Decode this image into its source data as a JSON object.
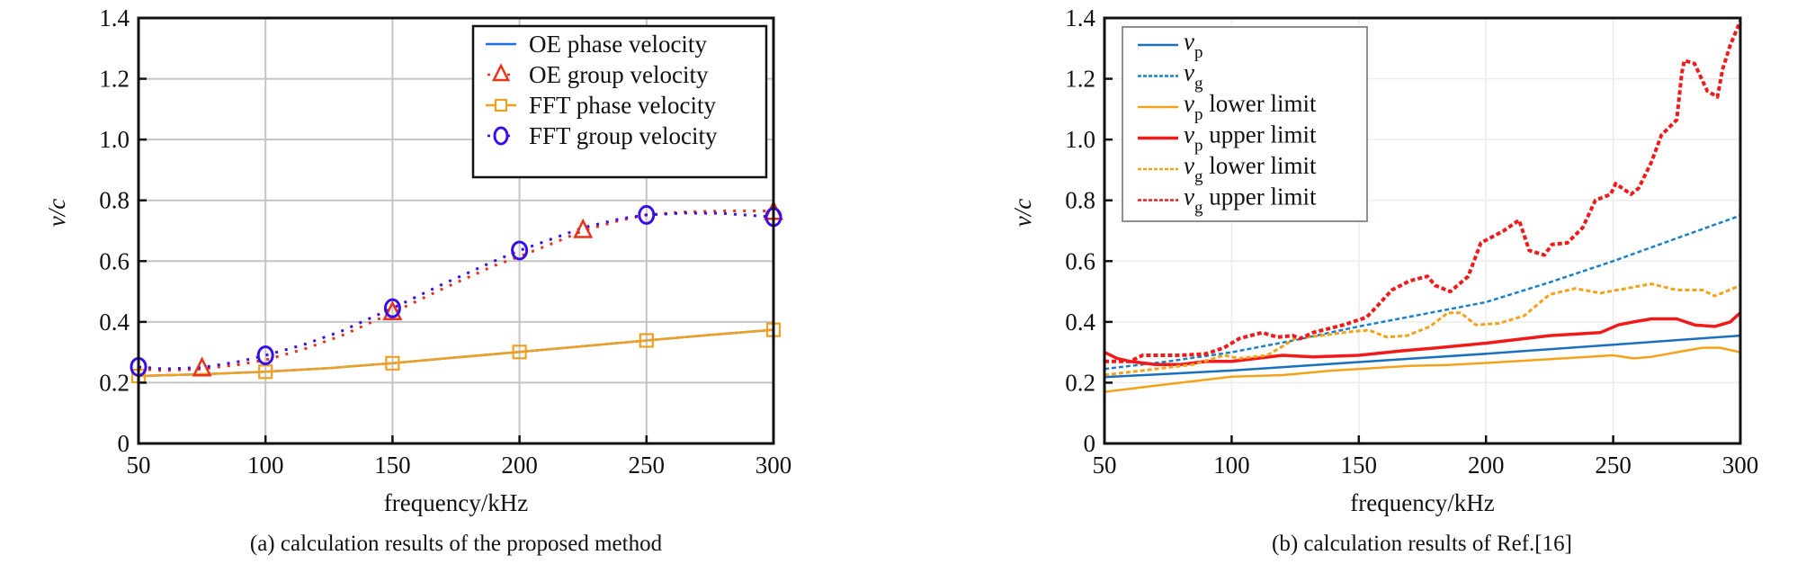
{
  "chart_data": [
    {
      "id": "a",
      "type": "line",
      "caption": "(a) calculation results of the proposed method",
      "xlabel": "frequency/kHz",
      "ylabel_italic": "v/c",
      "xlim": [
        50,
        300
      ],
      "ylim": [
        0,
        1.4
      ],
      "xticks": [
        "50",
        "100",
        "150",
        "200",
        "250",
        "300"
      ],
      "xtick_values": [
        50,
        100,
        150,
        200,
        250,
        300
      ],
      "yticks": [
        "0",
        "0.2",
        "0.4",
        "0.6",
        "0.8",
        "1.0",
        "1.2",
        "1.4"
      ],
      "ytick_values": [
        0,
        0.2,
        0.4,
        0.6,
        0.8,
        1.0,
        1.2,
        1.4
      ],
      "grid": true,
      "legend_position": "top-right",
      "series": [
        {
          "name": "OE phase velocity",
          "color": "#1f6fe0",
          "style": "solid",
          "marker": "none",
          "x": [
            50,
            75,
            100,
            125,
            150,
            175,
            200,
            225,
            250,
            275,
            300
          ],
          "y": [
            0.222,
            0.228,
            0.236,
            0.248,
            0.264,
            0.283,
            0.301,
            0.32,
            0.339,
            0.357,
            0.374
          ]
        },
        {
          "name": "OE group velocity",
          "color": "#e8321a",
          "style": "dotted",
          "marker": "triangle",
          "x": [
            50,
            60,
            75,
            90,
            100,
            115,
            130,
            150,
            170,
            190,
            200,
            215,
            225,
            240,
            250,
            265,
            280,
            300
          ],
          "y": [
            0.245,
            0.24,
            0.245,
            0.26,
            0.275,
            0.31,
            0.355,
            0.43,
            0.51,
            0.585,
            0.615,
            0.665,
            0.7,
            0.735,
            0.752,
            0.762,
            0.765,
            0.765
          ],
          "marker_x": [
            75,
            150,
            225,
            300
          ],
          "marker_y": [
            0.245,
            0.43,
            0.7,
            0.76
          ]
        },
        {
          "name": "FFT phase velocity",
          "color": "#f0a020",
          "style": "solid",
          "marker": "square",
          "x": [
            50,
            75,
            100,
            125,
            150,
            175,
            200,
            225,
            250,
            275,
            300
          ],
          "y": [
            0.222,
            0.228,
            0.236,
            0.248,
            0.264,
            0.283,
            0.301,
            0.32,
            0.339,
            0.357,
            0.374
          ],
          "marker_x": [
            50,
            100,
            150,
            200,
            250,
            300
          ],
          "marker_y": [
            0.222,
            0.236,
            0.264,
            0.301,
            0.339,
            0.374
          ]
        },
        {
          "name": "FFT group velocity",
          "color": "#3a0ee8",
          "style": "dotted",
          "marker": "circle",
          "x": [
            50,
            60,
            75,
            90,
            100,
            115,
            130,
            150,
            170,
            190,
            200,
            215,
            225,
            240,
            250,
            265,
            280,
            300
          ],
          "y": [
            0.252,
            0.245,
            0.25,
            0.27,
            0.29,
            0.325,
            0.37,
            0.445,
            0.525,
            0.6,
            0.635,
            0.68,
            0.71,
            0.74,
            0.752,
            0.758,
            0.757,
            0.745
          ],
          "marker_x": [
            50,
            100,
            150,
            200,
            250,
            300
          ],
          "marker_y": [
            0.252,
            0.29,
            0.445,
            0.635,
            0.752,
            0.745
          ]
        }
      ]
    },
    {
      "id": "b",
      "type": "line",
      "caption": "(b) calculation results of Ref.[16]",
      "xlabel": "frequency/kHz",
      "ylabel_italic": "v/c",
      "xlim": [
        50,
        300
      ],
      "ylim": [
        0,
        1.4
      ],
      "xticks": [
        "50",
        "100",
        "150",
        "200",
        "250",
        "300"
      ],
      "xtick_values": [
        50,
        100,
        150,
        200,
        250,
        300
      ],
      "yticks": [
        "0",
        "0.2",
        "0.4",
        "0.6",
        "0.8",
        "1.0",
        "1.2",
        "1.4"
      ],
      "ytick_values": [
        0,
        0.2,
        0.4,
        0.6,
        0.8,
        1.0,
        1.2,
        1.4
      ],
      "grid": true,
      "legend_position": "top-left",
      "series": [
        {
          "name_main": "v",
          "name_sub": "p",
          "name_suffix": "",
          "color": "#1a70c0",
          "style": "solid",
          "width": 2.5,
          "x": [
            50,
            100,
            150,
            200,
            250,
            300
          ],
          "y": [
            0.218,
            0.24,
            0.268,
            0.295,
            0.325,
            0.355
          ]
        },
        {
          "name_main": "v",
          "name_sub": "g",
          "name_suffix": "",
          "color": "#1a80c8",
          "style": "dashed",
          "width": 2.5,
          "x": [
            50,
            75,
            100,
            125,
            150,
            175,
            200,
            225,
            250,
            275,
            300
          ],
          "y": [
            0.245,
            0.27,
            0.3,
            0.34,
            0.385,
            0.425,
            0.465,
            0.53,
            0.6,
            0.675,
            0.75
          ]
        },
        {
          "name_main": "v",
          "name_sub": "p",
          "name_suffix": " lower limit",
          "color": "#f5a21b",
          "style": "solid",
          "width": 2.5,
          "x": [
            50,
            60,
            70,
            85,
            100,
            120,
            140,
            150,
            170,
            185,
            200,
            220,
            240,
            250,
            258,
            265,
            275,
            285,
            292,
            300
          ],
          "y": [
            0.17,
            0.18,
            0.19,
            0.205,
            0.22,
            0.225,
            0.24,
            0.245,
            0.255,
            0.258,
            0.265,
            0.275,
            0.285,
            0.29,
            0.28,
            0.285,
            0.3,
            0.315,
            0.315,
            0.3
          ]
        },
        {
          "name_main": "v",
          "name_sub": "p",
          "name_suffix": " upper limit",
          "color": "#f01a1a",
          "style": "solid",
          "width": 3.5,
          "x": [
            50,
            55,
            60,
            70,
            80,
            90,
            100,
            110,
            120,
            132,
            150,
            167,
            181,
            200,
            225,
            245,
            252,
            258,
            265,
            275,
            282,
            290,
            296,
            300
          ],
          "y": [
            0.3,
            0.28,
            0.27,
            0.26,
            0.26,
            0.27,
            0.27,
            0.28,
            0.29,
            0.285,
            0.29,
            0.305,
            0.315,
            0.33,
            0.355,
            0.365,
            0.39,
            0.4,
            0.41,
            0.41,
            0.39,
            0.385,
            0.4,
            0.43
          ]
        },
        {
          "name_main": "v",
          "name_sub": "g",
          "name_suffix": " lower limit",
          "color": "#f5a21b",
          "style": "dashed",
          "width": 3,
          "x": [
            50,
            70,
            85,
            97,
            103,
            114,
            120,
            125,
            135,
            146,
            154,
            161,
            169,
            178,
            185,
            190,
            196,
            205,
            215,
            225,
            235,
            245,
            255,
            265,
            275,
            285,
            290,
            300
          ],
          "y": [
            0.225,
            0.245,
            0.26,
            0.29,
            0.28,
            0.29,
            0.32,
            0.345,
            0.355,
            0.367,
            0.373,
            0.35,
            0.355,
            0.385,
            0.43,
            0.43,
            0.39,
            0.395,
            0.42,
            0.49,
            0.51,
            0.495,
            0.51,
            0.525,
            0.505,
            0.505,
            0.485,
            0.52
          ]
        },
        {
          "name_main": "v",
          "name_sub": "g",
          "name_suffix": " upper limit",
          "color": "#f01a1a",
          "style": "dashed",
          "width": 4,
          "x": [
            50,
            60,
            65,
            80,
            90,
            97,
            103,
            112,
            118,
            124,
            127,
            132,
            144,
            153,
            157,
            163,
            170,
            177,
            180,
            186,
            193,
            198,
            207,
            213,
            217,
            223,
            226,
            232,
            238,
            243,
            249,
            251,
            257,
            260,
            265,
            269,
            275,
            277,
            278,
            282,
            287,
            291,
            293,
            296,
            300
          ],
          "y": [
            0.27,
            0.27,
            0.29,
            0.29,
            0.295,
            0.315,
            0.345,
            0.365,
            0.35,
            0.355,
            0.345,
            0.365,
            0.39,
            0.415,
            0.45,
            0.505,
            0.535,
            0.55,
            0.52,
            0.5,
            0.55,
            0.66,
            0.7,
            0.735,
            0.635,
            0.62,
            0.655,
            0.66,
            0.71,
            0.8,
            0.82,
            0.855,
            0.82,
            0.84,
            0.925,
            1.015,
            1.065,
            1.22,
            1.26,
            1.25,
            1.16,
            1.14,
            1.23,
            1.31,
            1.39
          ]
        }
      ]
    }
  ]
}
